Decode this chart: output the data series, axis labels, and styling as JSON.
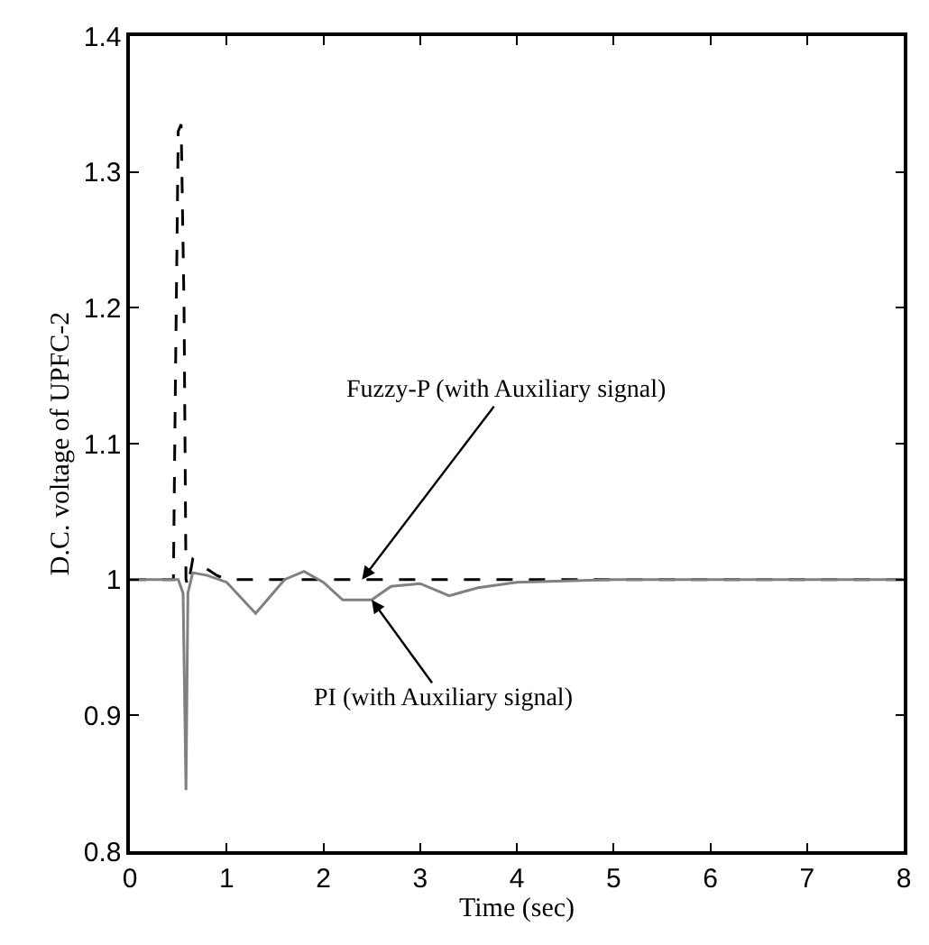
{
  "chart_data": {
    "type": "line",
    "xlabel": "Time (sec)",
    "ylabel": "D.C. voltage of UPFC-2",
    "xlim": [
      0,
      8
    ],
    "ylim": [
      0.8,
      1.4
    ],
    "xticks": [
      0,
      1,
      2,
      3,
      4,
      5,
      6,
      7,
      8
    ],
    "yticks": [
      0.8,
      0.9,
      1,
      1.1,
      1.2,
      1.3,
      1.4
    ],
    "grid": false,
    "series": [
      {
        "color": "#000000",
        "line_style": "dashed",
        "x": [
          0,
          0.45,
          0.47,
          0.5,
          0.53,
          0.56,
          0.58,
          0.6,
          0.65,
          0.75,
          0.9,
          1.0,
          1.5,
          2,
          3,
          4,
          8
        ],
        "values": [
          1,
          1,
          1.14,
          1.33,
          1.335,
          1.2,
          1.0,
          0.995,
          1.015,
          1.01,
          1.003,
          1.0,
          1.0,
          1.0,
          1.0,
          1.0,
          1.0
        ]
      },
      {
        "color": "#808080",
        "line_style": "solid",
        "x": [
          0,
          0.5,
          0.55,
          0.58,
          0.6,
          0.65,
          0.8,
          1.0,
          1.3,
          1.6,
          1.8,
          2.0,
          2.2,
          2.5,
          2.7,
          3.0,
          3.3,
          3.6,
          4,
          5,
          8
        ],
        "values": [
          1,
          1,
          0.99,
          0.845,
          0.99,
          1.005,
          1.003,
          0.998,
          0.975,
          1.0,
          1.006,
          0.998,
          0.985,
          0.985,
          0.995,
          0.997,
          0.988,
          0.994,
          0.998,
          1.0,
          1.0
        ]
      }
    ],
    "annotations": [
      {
        "text": "Fuzzy-P (with Auxiliary signal)",
        "x": 2.4,
        "y": 1.0
      },
      {
        "text": "PI (with Auxiliary signal)",
        "x": 2.5,
        "y": 0.985
      }
    ]
  }
}
